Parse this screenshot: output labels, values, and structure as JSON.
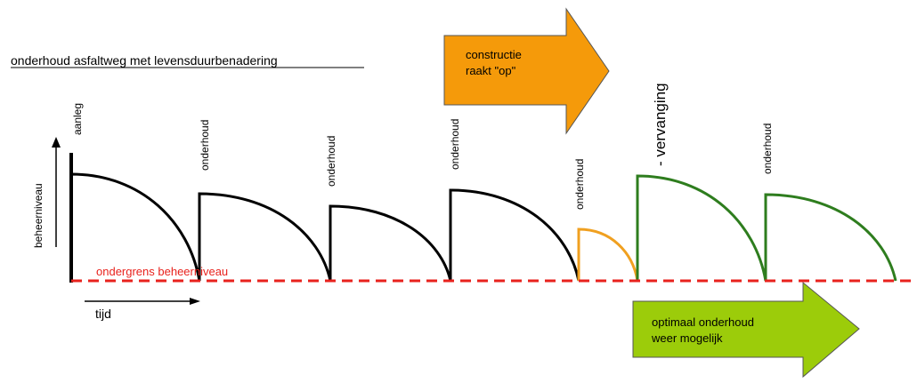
{
  "title": "onderhoud asfaltweg met levensduurbenadering",
  "axes": {
    "y_label": "beheerniveau",
    "x_label": "tijd"
  },
  "threshold_label": "ondergrens beheerniveau",
  "events": {
    "aanleg": "aanleg",
    "onderhoud": "onderhoud",
    "vervanging": "- vervanging"
  },
  "callouts": {
    "constructie_line1": "constructie",
    "constructie_line2": "raakt \"op\"",
    "optimaal_line1": "optimaal onderhoud",
    "optimaal_line2": "weer mogelijk"
  },
  "colors": {
    "curve_normal": "#000000",
    "curve_last": "#f0a020",
    "curve_new": "#2e7d1e",
    "threshold": "#e8221d",
    "arrow_orange": "#f59a0a",
    "arrow_green": "#9ccc0a"
  }
}
